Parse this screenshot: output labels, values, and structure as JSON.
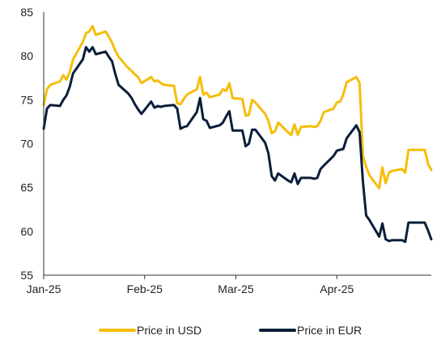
{
  "chart_data": {
    "type": "line",
    "title": "",
    "xlabel": "",
    "ylabel": "",
    "ylim": [
      55,
      85
    ],
    "yticks": [
      55,
      60,
      65,
      70,
      75,
      80,
      85
    ],
    "xlim": [
      "2025-01-01",
      "2025-04-30"
    ],
    "xticks": [
      {
        "date": "2025-01-01",
        "label": "Jan-25"
      },
      {
        "date": "2025-02-01",
        "label": "Feb-25"
      },
      {
        "date": "2025-03-01",
        "label": "Mar-25"
      },
      {
        "date": "2025-04-01",
        "label": "Apr-25"
      }
    ],
    "grid": false,
    "legend_position": "bottom",
    "series": [
      {
        "name": "Price in USD",
        "color": "#F5BE0B",
        "points": [
          [
            "2025-01-01",
            74.4
          ],
          [
            "2025-01-02",
            76.2
          ],
          [
            "2025-01-03",
            76.7
          ],
          [
            "2025-01-06",
            77.1
          ],
          [
            "2025-01-07",
            77.8
          ],
          [
            "2025-01-08",
            77.3
          ],
          [
            "2025-01-09",
            78.2
          ],
          [
            "2025-01-10",
            79.6
          ],
          [
            "2025-01-13",
            81.6
          ],
          [
            "2025-01-14",
            82.6
          ],
          [
            "2025-01-15",
            82.8
          ],
          [
            "2025-01-16",
            83.4
          ],
          [
            "2025-01-17",
            82.4
          ],
          [
            "2025-01-20",
            82.8
          ],
          [
            "2025-01-21",
            82.2
          ],
          [
            "2025-01-22",
            81.5
          ],
          [
            "2025-01-23",
            80.6
          ],
          [
            "2025-01-24",
            79.9
          ],
          [
            "2025-01-27",
            78.6
          ],
          [
            "2025-01-28",
            78.3
          ],
          [
            "2025-01-29",
            77.9
          ],
          [
            "2025-01-30",
            77.6
          ],
          [
            "2025-01-31",
            76.9
          ],
          [
            "2025-02-03",
            77.6
          ],
          [
            "2025-02-04",
            77.1
          ],
          [
            "2025-02-05",
            77.2
          ],
          [
            "2025-02-06",
            76.9
          ],
          [
            "2025-02-07",
            76.7
          ],
          [
            "2025-02-10",
            76.6
          ],
          [
            "2025-02-11",
            74.6
          ],
          [
            "2025-02-12",
            74.5
          ],
          [
            "2025-02-13",
            75.1
          ],
          [
            "2025-02-14",
            75.6
          ],
          [
            "2025-02-17",
            76.2
          ],
          [
            "2025-02-18",
            77.6
          ],
          [
            "2025-02-19",
            75.6
          ],
          [
            "2025-02-20",
            75.8
          ],
          [
            "2025-02-21",
            75.3
          ],
          [
            "2025-02-24",
            75.6
          ],
          [
            "2025-02-25",
            76.2
          ],
          [
            "2025-02-26",
            76.0
          ],
          [
            "2025-02-27",
            76.9
          ],
          [
            "2025-02-28",
            75.2
          ],
          [
            "2025-03-03",
            75.1
          ],
          [
            "2025-03-04",
            73.2
          ],
          [
            "2025-03-05",
            73.3
          ],
          [
            "2025-03-06",
            75.0
          ],
          [
            "2025-03-07",
            74.7
          ],
          [
            "2025-03-10",
            73.4
          ],
          [
            "2025-03-11",
            72.6
          ],
          [
            "2025-03-12",
            71.2
          ],
          [
            "2025-03-13",
            71.4
          ],
          [
            "2025-03-14",
            72.4
          ],
          [
            "2025-03-17",
            71.3
          ],
          [
            "2025-03-18",
            71.0
          ],
          [
            "2025-03-19",
            72.2
          ],
          [
            "2025-03-20",
            71.0
          ],
          [
            "2025-03-21",
            71.9
          ],
          [
            "2025-03-24",
            72.0
          ],
          [
            "2025-03-25",
            71.9
          ],
          [
            "2025-03-26",
            72.0
          ],
          [
            "2025-03-27",
            72.6
          ],
          [
            "2025-03-28",
            73.6
          ],
          [
            "2025-03-31",
            74.0
          ],
          [
            "2025-04-01",
            74.7
          ],
          [
            "2025-04-02",
            74.8
          ],
          [
            "2025-04-03",
            75.6
          ],
          [
            "2025-04-04",
            77.0
          ],
          [
            "2025-04-07",
            77.6
          ],
          [
            "2025-04-08",
            76.9
          ],
          [
            "2025-04-09",
            68.6
          ],
          [
            "2025-04-10",
            67.4
          ],
          [
            "2025-04-11",
            66.4
          ],
          [
            "2025-04-14",
            64.9
          ],
          [
            "2025-04-15",
            67.3
          ],
          [
            "2025-04-16",
            65.5
          ],
          [
            "2025-04-17",
            66.7
          ],
          [
            "2025-04-18",
            66.9
          ],
          [
            "2025-04-21",
            67.1
          ],
          [
            "2025-04-22",
            66.7
          ],
          [
            "2025-04-23",
            69.3
          ],
          [
            "2025-04-24",
            69.3
          ],
          [
            "2025-04-25",
            69.3
          ],
          [
            "2025-04-28",
            69.3
          ],
          [
            "2025-04-29",
            67.7
          ],
          [
            "2025-04-30",
            67.0
          ]
        ]
      },
      {
        "name": "Price in EUR",
        "color": "#0B1E3A",
        "points": [
          [
            "2025-01-01",
            71.7
          ],
          [
            "2025-01-02",
            74.0
          ],
          [
            "2025-01-03",
            74.4
          ],
          [
            "2025-01-06",
            74.3
          ],
          [
            "2025-01-07",
            75.0
          ],
          [
            "2025-01-08",
            75.5
          ],
          [
            "2025-01-09",
            76.5
          ],
          [
            "2025-01-10",
            78.0
          ],
          [
            "2025-01-13",
            79.6
          ],
          [
            "2025-01-14",
            81.0
          ],
          [
            "2025-01-15",
            80.5
          ],
          [
            "2025-01-16",
            81.0
          ],
          [
            "2025-01-17",
            80.2
          ],
          [
            "2025-01-20",
            80.5
          ],
          [
            "2025-01-21",
            79.9
          ],
          [
            "2025-01-22",
            79.4
          ],
          [
            "2025-01-23",
            77.9
          ],
          [
            "2025-01-24",
            76.7
          ],
          [
            "2025-01-27",
            75.7
          ],
          [
            "2025-01-28",
            75.2
          ],
          [
            "2025-01-29",
            74.5
          ],
          [
            "2025-01-30",
            73.9
          ],
          [
            "2025-01-31",
            73.4
          ],
          [
            "2025-02-03",
            74.8
          ],
          [
            "2025-02-04",
            74.1
          ],
          [
            "2025-02-05",
            74.3
          ],
          [
            "2025-02-06",
            74.2
          ],
          [
            "2025-02-07",
            74.3
          ],
          [
            "2025-02-10",
            74.4
          ],
          [
            "2025-02-11",
            74.0
          ],
          [
            "2025-02-12",
            71.7
          ],
          [
            "2025-02-13",
            71.9
          ],
          [
            "2025-02-14",
            72.0
          ],
          [
            "2025-02-17",
            73.6
          ],
          [
            "2025-02-18",
            75.2
          ],
          [
            "2025-02-19",
            72.8
          ],
          [
            "2025-02-20",
            72.6
          ],
          [
            "2025-02-21",
            71.8
          ],
          [
            "2025-02-24",
            72.1
          ],
          [
            "2025-02-25",
            72.4
          ],
          [
            "2025-02-26",
            73.1
          ],
          [
            "2025-02-27",
            73.7
          ],
          [
            "2025-02-28",
            71.5
          ],
          [
            "2025-03-03",
            71.5
          ],
          [
            "2025-03-04",
            69.7
          ],
          [
            "2025-03-05",
            70.0
          ],
          [
            "2025-03-06",
            71.6
          ],
          [
            "2025-03-07",
            71.6
          ],
          [
            "2025-03-10",
            70.1
          ],
          [
            "2025-03-11",
            68.9
          ],
          [
            "2025-03-12",
            66.3
          ],
          [
            "2025-03-13",
            65.8
          ],
          [
            "2025-03-14",
            66.6
          ],
          [
            "2025-03-17",
            65.8
          ],
          [
            "2025-03-18",
            65.6
          ],
          [
            "2025-03-19",
            66.6
          ],
          [
            "2025-03-20",
            65.4
          ],
          [
            "2025-03-21",
            66.1
          ],
          [
            "2025-03-24",
            66.1
          ],
          [
            "2025-03-25",
            66.0
          ],
          [
            "2025-03-26",
            66.1
          ],
          [
            "2025-03-27",
            67.1
          ],
          [
            "2025-03-28",
            67.5
          ],
          [
            "2025-03-31",
            68.6
          ],
          [
            "2025-04-01",
            69.2
          ],
          [
            "2025-04-02",
            69.3
          ],
          [
            "2025-04-03",
            69.4
          ],
          [
            "2025-04-04",
            70.6
          ],
          [
            "2025-04-07",
            72.1
          ],
          [
            "2025-04-08",
            71.3
          ],
          [
            "2025-04-09",
            65.7
          ],
          [
            "2025-04-10",
            61.8
          ],
          [
            "2025-04-11",
            61.3
          ],
          [
            "2025-04-14",
            59.4
          ],
          [
            "2025-04-15",
            60.9
          ],
          [
            "2025-04-16",
            59.1
          ],
          [
            "2025-04-17",
            58.9
          ],
          [
            "2025-04-18",
            59.0
          ],
          [
            "2025-04-21",
            59.0
          ],
          [
            "2025-04-22",
            58.8
          ],
          [
            "2025-04-23",
            61.0
          ],
          [
            "2025-04-24",
            61.0
          ],
          [
            "2025-04-25",
            61.0
          ],
          [
            "2025-04-28",
            61.0
          ],
          [
            "2025-04-29",
            60.1
          ],
          [
            "2025-04-30",
            59.1
          ]
        ]
      }
    ]
  }
}
